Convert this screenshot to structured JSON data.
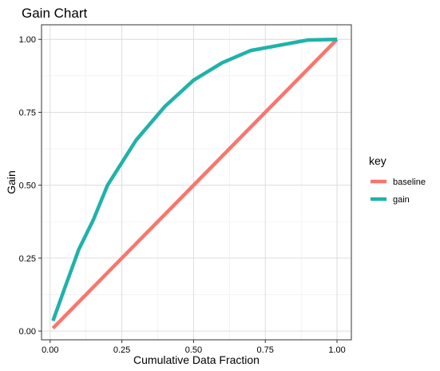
{
  "chart_data": {
    "type": "line",
    "title": "Gain Chart",
    "xlabel": "Cumulative Data Fraction",
    "ylabel": "Gain",
    "xlim": [
      -0.03,
      1.05
    ],
    "ylim": [
      -0.03,
      1.05
    ],
    "x_ticks": [
      0.0,
      0.25,
      0.5,
      0.75,
      1.0
    ],
    "x_tick_labels": [
      "0.00",
      "0.25",
      "0.50",
      "0.75",
      "1.00"
    ],
    "y_ticks": [
      0.0,
      0.25,
      0.5,
      0.75,
      1.0
    ],
    "y_tick_labels": [
      "0.00",
      "0.25",
      "0.50",
      "0.75",
      "1.00"
    ],
    "grid": true,
    "legend": {
      "title": "key",
      "position": "right"
    },
    "series": [
      {
        "name": "baseline",
        "color": "#F8766D",
        "points": [
          [
            0.01,
            0.01
          ],
          [
            1.0,
            1.0
          ]
        ]
      },
      {
        "name": "gain",
        "color": "#20B2AA",
        "points": [
          [
            0.01,
            0.035
          ],
          [
            0.05,
            0.145
          ],
          [
            0.1,
            0.28
          ],
          [
            0.15,
            0.38
          ],
          [
            0.2,
            0.5
          ],
          [
            0.3,
            0.655
          ],
          [
            0.4,
            0.77
          ],
          [
            0.5,
            0.86
          ],
          [
            0.6,
            0.92
          ],
          [
            0.7,
            0.962
          ],
          [
            0.8,
            0.98
          ],
          [
            0.9,
            0.998
          ],
          [
            1.0,
            1.0
          ]
        ]
      }
    ]
  }
}
